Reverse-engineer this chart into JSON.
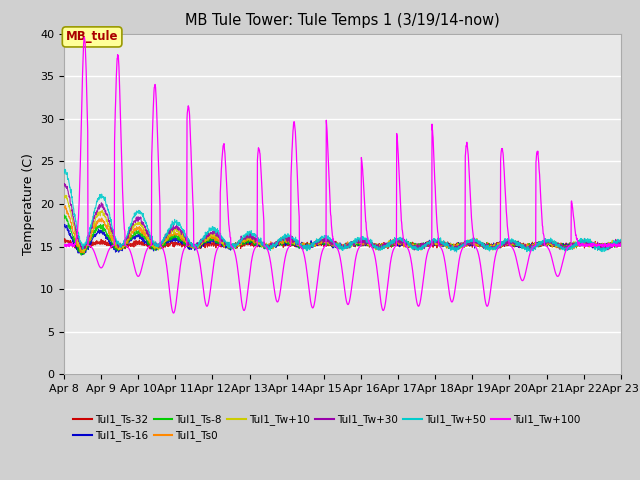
{
  "title": "MB Tule Tower: Tule Temps 1 (3/19/14-now)",
  "ylabel": "Temperature (C)",
  "ylim": [
    0,
    40
  ],
  "yticks": [
    0,
    5,
    10,
    15,
    20,
    25,
    30,
    35,
    40
  ],
  "x_tick_labels": [
    "Apr 8",
    "Apr 9",
    "Apr 10",
    "Apr 11",
    "Apr 12",
    "Apr 13",
    "Apr 14",
    "Apr 15",
    "Apr 16",
    "Apr 17",
    "Apr 18",
    "Apr 19",
    "Apr 20",
    "Apr 21",
    "Apr 22",
    "Apr 23"
  ],
  "bg_color": "#e8e8e8",
  "legend_entries": [
    {
      "label": "Tul1_Ts-32",
      "color": "#cc0000"
    },
    {
      "label": "Tul1_Ts-16",
      "color": "#0000cc"
    },
    {
      "label": "Tul1_Ts-8",
      "color": "#00cc00"
    },
    {
      "label": "Tul1_Ts0",
      "color": "#ff8800"
    },
    {
      "label": "Tul1_Tw+10",
      "color": "#cccc00"
    },
    {
      "label": "Tul1_Tw+30",
      "color": "#9900aa"
    },
    {
      "label": "Tul1_Tw+50",
      "color": "#00cccc"
    },
    {
      "label": "Tul1_Tw+100",
      "color": "#ff00ff"
    }
  ],
  "mb_tule_color": "#ff00ff",
  "annotation_label": "MB_tule",
  "spike_peaks": [
    0.55,
    1.45,
    2.45,
    3.35,
    4.3,
    5.25,
    6.2,
    7.05,
    8.0,
    8.95,
    9.9,
    10.85,
    11.8,
    12.75,
    13.65
  ],
  "spike_heights": [
    39.5,
    37.5,
    34.0,
    31.5,
    27.0,
    26.5,
    29.5,
    30.0,
    25.5,
    28.5,
    29.5,
    27.0,
    26.5,
    26.0,
    20.5
  ],
  "dip_troughs": [
    1.0,
    2.0,
    2.95,
    3.85,
    4.85,
    5.75,
    6.7,
    7.65,
    8.6,
    9.55,
    10.45,
    11.4,
    12.35,
    13.3
  ],
  "dip_lows": [
    12.5,
    11.5,
    7.2,
    8.0,
    7.5,
    8.5,
    7.8,
    8.2,
    7.5,
    8.0,
    8.5,
    8.0,
    11.0,
    11.5
  ]
}
